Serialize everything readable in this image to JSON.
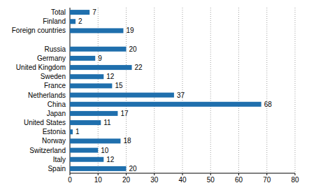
{
  "chart_data": {
    "type": "bar",
    "orientation": "horizontal",
    "categories": [
      "Total",
      "Finland",
      "Foreign countries",
      null,
      "Russia",
      "Germany",
      "United Kingdom",
      "Sweden",
      "France",
      "Netherlands",
      "China",
      "Japan",
      "United States",
      "Estonia",
      "Norway",
      "Switzerland",
      "Italy",
      "Spain"
    ],
    "values": [
      7,
      2,
      19,
      null,
      20,
      9,
      22,
      12,
      15,
      37,
      68,
      17,
      11,
      1,
      18,
      10,
      12,
      20
    ],
    "color": "#1f6fad",
    "xlim": [
      0,
      80
    ],
    "xticks": [
      0,
      10,
      20,
      30,
      40,
      50,
      60,
      70,
      80
    ],
    "grid": true,
    "data_labels": true
  }
}
